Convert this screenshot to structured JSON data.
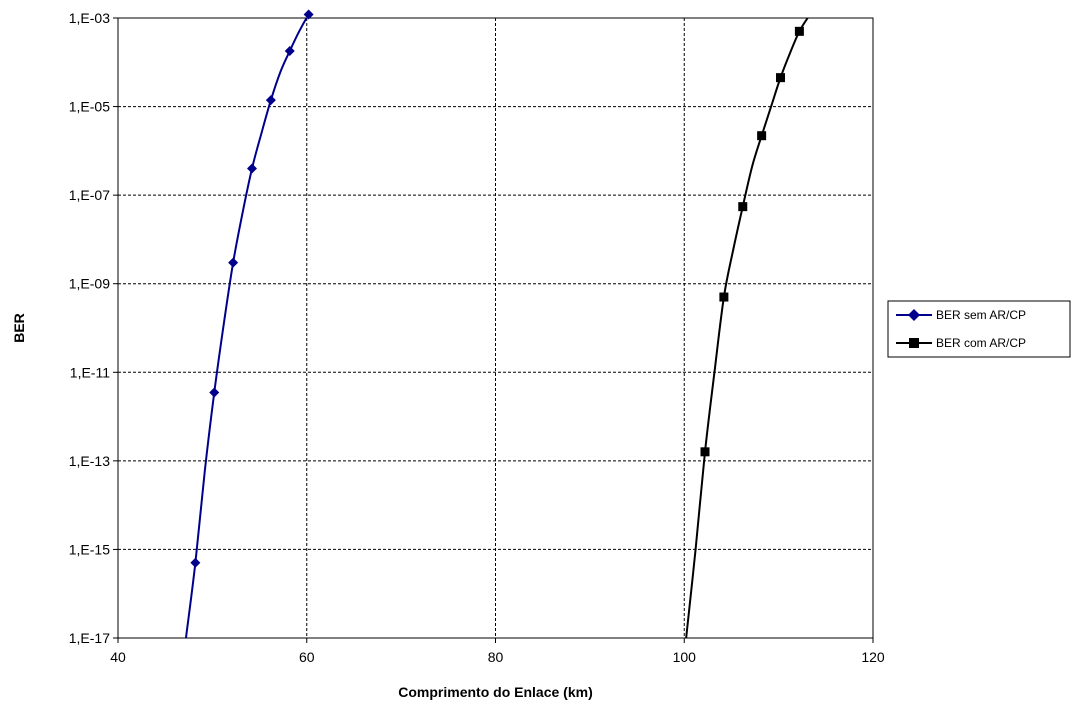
{
  "chart_data": {
    "type": "line",
    "xlabel": "Comprimento do Enlace (km)",
    "ylabel": "BER",
    "xlim": [
      40,
      120
    ],
    "ylim": [
      1e-17,
      0.001
    ],
    "y_scale": "log",
    "x_ticks": [
      40,
      80,
      120
    ],
    "x_tick_labels": [
      "40",
      "60",
      "80",
      "100",
      "120"
    ],
    "x_tick_values": [
      40,
      60,
      80,
      100,
      120
    ],
    "y_tick_values": [
      0.001,
      1e-05,
      1e-07,
      1e-09,
      1e-11,
      1e-13,
      1e-15,
      1e-17
    ],
    "y_tick_labels": [
      "1,E-03",
      "1,E-05",
      "1,E-07",
      "1,E-09",
      "1,E-11",
      "1,E-13",
      "1,E-15",
      "1,E-17"
    ],
    "grid": true,
    "legend_position": "right",
    "series": [
      {
        "name": "BER sem AR/CP",
        "color": "#00008b",
        "marker": "diamond",
        "x": [
          48.2,
          50.2,
          52.2,
          54.2,
          56.2,
          58.2,
          60.2
        ],
        "y": [
          5e-16,
          3.5e-12,
          3e-09,
          4e-07,
          1.4e-05,
          0.00018,
          0.0012
        ],
        "line_x": [
          47.2,
          48.2,
          49.2,
          50.2,
          51.2,
          52.2,
          53.2,
          54.2,
          55.2,
          56.2,
          57.2,
          58.2,
          59.2,
          60.2,
          61.2
        ],
        "line_y": [
          1e-17,
          5e-16,
          6e-14,
          3.5e-12,
          1.2e-10,
          3e-09,
          4e-08,
          4e-07,
          2.5e-06,
          1.4e-05,
          6e-05,
          0.00018,
          0.0005,
          0.0012,
          0.0025
        ]
      },
      {
        "name": "BER com AR/CP",
        "color": "#000000",
        "marker": "square",
        "x": [
          102.2,
          104.2,
          106.2,
          108.2,
          110.2,
          112.2
        ],
        "y": [
          1.6e-13,
          5e-10,
          5.5e-08,
          2.2e-06,
          4.5e-05,
          0.0005
        ],
        "line_x": [
          100.2,
          101.2,
          102.2,
          103.2,
          104.2,
          105.2,
          106.2,
          107.2,
          108.2,
          109.2,
          110.2,
          111.2,
          112.2,
          113.2
        ],
        "line_y": [
          1e-17,
          1e-15,
          1.6e-13,
          1e-11,
          5e-10,
          6e-09,
          5.5e-08,
          4.5e-07,
          2.2e-06,
          1e-05,
          4.5e-05,
          0.00016,
          0.0005,
          0.0011
        ]
      }
    ]
  }
}
